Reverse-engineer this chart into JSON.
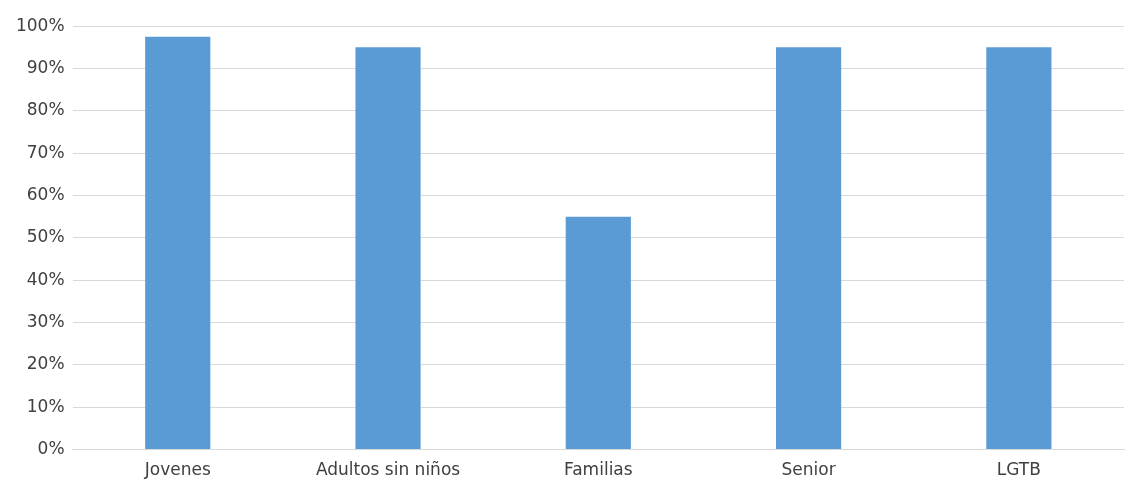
{
  "chart_data": {
    "type": "bar",
    "categories": [
      "Jovenes",
      "Adultos sin niños",
      "Familias",
      "Senior",
      "LGTB"
    ],
    "values": [
      97.5,
      95,
      55,
      95,
      95
    ],
    "color": "#5b9bd5",
    "ylim": [
      0,
      100
    ],
    "yticks": [
      {
        "value": 0,
        "label": "0%"
      },
      {
        "value": 10,
        "label": "10%"
      },
      {
        "value": 20,
        "label": "20%"
      },
      {
        "value": 30,
        "label": "30%"
      },
      {
        "value": 40,
        "label": "40%"
      },
      {
        "value": 50,
        "label": "50%"
      },
      {
        "value": 60,
        "label": "60%"
      },
      {
        "value": 70,
        "label": "70%"
      },
      {
        "value": 80,
        "label": "80%"
      },
      {
        "value": 90,
        "label": "90%"
      },
      {
        "value": 100,
        "label": "100%"
      }
    ],
    "grid": "y",
    "legend": false
  }
}
